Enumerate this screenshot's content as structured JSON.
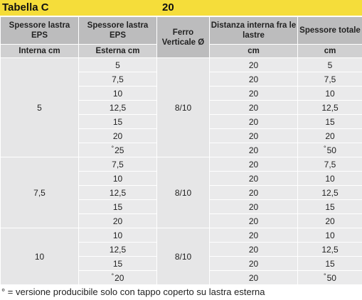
{
  "title": {
    "left": "Tabella C",
    "right": "20"
  },
  "headers": {
    "col1": "Spessore lastra EPS",
    "col2": "Spessore lastra EPS",
    "col3": "Ferro Verticale Ø",
    "col4": "Distanza interna fra le lastre",
    "col5": "Spessore totale"
  },
  "subheaders": {
    "col1": "Interna cm",
    "col2": "Esterna cm",
    "col4": "cm",
    "col5": "cm"
  },
  "groups": [
    {
      "interna": "5",
      "ferro": "8/10",
      "rows": [
        {
          "esterna": "5",
          "distanza": "20",
          "totale": "5"
        },
        {
          "esterna": "7,5",
          "distanza": "20",
          "totale": "7,5"
        },
        {
          "esterna": "10",
          "distanza": "20",
          "totale": "10"
        },
        {
          "esterna": "12,5",
          "distanza": "20",
          "totale": "12,5"
        },
        {
          "esterna": "15",
          "distanza": "20",
          "totale": "15"
        },
        {
          "esterna": "20",
          "distanza": "20",
          "totale": "20"
        },
        {
          "esterna": "25",
          "esterna_mark": "°",
          "distanza": "20",
          "totale": "50",
          "totale_mark": "°"
        }
      ]
    },
    {
      "interna": "7,5",
      "ferro": "8/10",
      "rows": [
        {
          "esterna": "7,5",
          "distanza": "20",
          "totale": "7,5"
        },
        {
          "esterna": "10",
          "distanza": "20",
          "totale": "10"
        },
        {
          "esterna": "12,5",
          "distanza": "20",
          "totale": "12,5"
        },
        {
          "esterna": "15",
          "distanza": "20",
          "totale": "15"
        },
        {
          "esterna": "20",
          "distanza": "20",
          "totale": "20"
        }
      ]
    },
    {
      "interna": "10",
      "ferro": "8/10",
      "rows": [
        {
          "esterna": "10",
          "distanza": "20",
          "totale": "10"
        },
        {
          "esterna": "12,5",
          "distanza": "20",
          "totale": "12,5"
        },
        {
          "esterna": "15",
          "distanza": "20",
          "totale": "15"
        },
        {
          "esterna": "20",
          "esterna_mark": "°",
          "distanza": "20",
          "totale": "50",
          "totale_mark": "°"
        }
      ]
    }
  ],
  "footnote": "° =  versione producibile solo con tappo coperto su lastra esterna",
  "colors": {
    "title_bar": "#f5dd3a",
    "header": "#bcbcbd",
    "subheader": "#d0d0d1",
    "cell": "#eaeaeb"
  }
}
